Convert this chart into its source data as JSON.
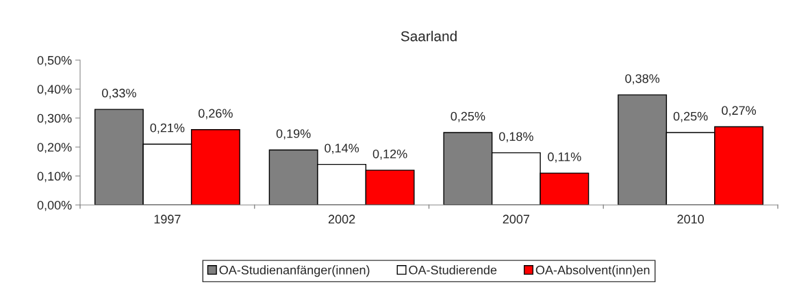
{
  "chart_data": {
    "type": "bar",
    "title": "Saarland",
    "categories": [
      "1997",
      "2002",
      "2007",
      "2010"
    ],
    "series": [
      {
        "name": "OA-Studienanfänger(innen)",
        "color": "#808080",
        "values": [
          0.33,
          0.19,
          0.25,
          0.38
        ],
        "value_labels": [
          "0,33%",
          "0,19%",
          "0,25%",
          "0,38%"
        ]
      },
      {
        "name": "OA-Studierende",
        "color": "#ffffff",
        "values": [
          0.21,
          0.14,
          0.18,
          0.25
        ],
        "value_labels": [
          "0,21%",
          "0,14%",
          "0,18%",
          "0,25%"
        ]
      },
      {
        "name": "OA-Absolvent(inn)en",
        "color": "#ff0000",
        "values": [
          0.26,
          0.12,
          0.11,
          0.27
        ],
        "value_labels": [
          "0,26%",
          "0,12%",
          "0,11%",
          "0,27%"
        ]
      }
    ],
    "ylim": [
      0,
      0.5
    ],
    "yticks": [
      {
        "value": 0,
        "label": "0,00%"
      },
      {
        "value": 0.1,
        "label": "0,10%"
      },
      {
        "value": 0.2,
        "label": "0,20%"
      },
      {
        "value": 0.3,
        "label": "0,30%"
      },
      {
        "value": 0.4,
        "label": "0,40%"
      },
      {
        "value": 0.5,
        "label": "0,50%"
      }
    ],
    "grid": false,
    "legend": "bottom"
  }
}
